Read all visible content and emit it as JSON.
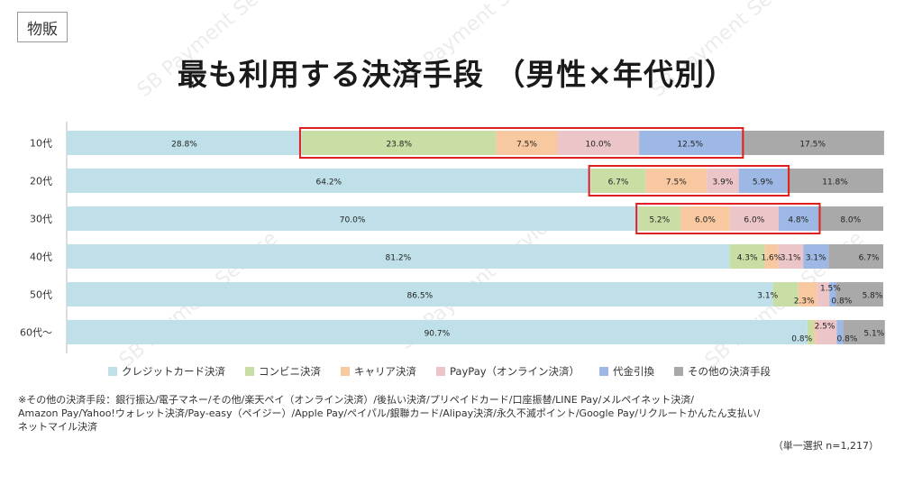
{
  "tag": "物販",
  "title": "最も利用する決済手段 （男性×年代別）",
  "watermark": "SB Payment Service",
  "chart_data": {
    "type": "bar",
    "orientation": "horizontal",
    "stacked": true,
    "percent_stacked": true,
    "categories": [
      "10代",
      "20代",
      "30代",
      "40代",
      "50代",
      "60代～"
    ],
    "series": [
      {
        "name": "クレジットカード決済",
        "color": "#bfe0e8",
        "values": [
          28.8,
          64.2,
          70.0,
          81.2,
          86.5,
          90.7
        ]
      },
      {
        "name": "コンビニ決済",
        "color": "#c9dea5",
        "values": [
          23.8,
          6.7,
          5.2,
          4.3,
          3.1,
          0.8
        ]
      },
      {
        "name": "キャリア決済",
        "color": "#f8c8a0",
        "values": [
          7.5,
          7.5,
          6.0,
          1.6,
          2.3,
          0.3
        ]
      },
      {
        "name": "PayPay（オンライン決済）",
        "color": "#ecc5c8",
        "values": [
          10.0,
          3.9,
          6.0,
          3.1,
          1.5,
          2.5
        ]
      },
      {
        "name": "代金引換",
        "color": "#9db8e4",
        "values": [
          12.5,
          5.9,
          4.8,
          3.1,
          0.8,
          0.8
        ]
      },
      {
        "name": "その他の決済手段",
        "color": "#a9a9a9",
        "values": [
          17.5,
          11.8,
          8.0,
          6.7,
          5.8,
          5.1
        ]
      }
    ],
    "data_labels": [
      [
        "28.8%",
        "23.8%",
        "7.5%",
        "10.0%",
        "12.5%",
        "17.5%"
      ],
      [
        "64.2%",
        "6.7%",
        "7.5%",
        "3.9%",
        "5.9%",
        "11.8%"
      ],
      [
        "70.0%",
        "5.2%",
        "6.0%",
        "6.0%",
        "4.8%",
        "8.0%"
      ],
      [
        "81.2%",
        "4.3%",
        "1.6%",
        "3.1%",
        "3.1%",
        "6.7%"
      ],
      [
        "86.5%",
        "3.1%",
        "2.3%",
        "1.5%",
        "0.8%",
        "5.8%"
      ],
      [
        "90.7%",
        "0.8%",
        "",
        "2.5%",
        "0.8%",
        "5.1%"
      ]
    ],
    "highlight_boxes": [
      {
        "category": "10代",
        "from_series": 1,
        "to_series": 4,
        "color": "#e02020"
      },
      {
        "category": "20代",
        "from_series": 1,
        "to_series": 4,
        "color": "#e02020"
      },
      {
        "category": "30代",
        "from_series": 1,
        "to_series": 4,
        "color": "#e02020"
      }
    ],
    "xlim": [
      0,
      100
    ],
    "legend_position": "bottom",
    "grid": false
  },
  "legend": [
    {
      "label": "クレジットカード決済",
      "color": "#bfe0e8"
    },
    {
      "label": "コンビニ決済",
      "color": "#c9dea5"
    },
    {
      "label": "キャリア決済",
      "color": "#f8c8a0"
    },
    {
      "label": "PayPay（オンライン決済）",
      "color": "#ecc5c8"
    },
    {
      "label": "代金引換",
      "color": "#9db8e4"
    },
    {
      "label": "その他の決済手段",
      "color": "#a9a9a9"
    }
  ],
  "footnote": {
    "line1": "※その他の決済手段：銀行振込/電子マネー/その他/楽天ペイ（オンライン決済）/後払い決済/プリペイドカード/口座振替/LINE Pay/メルペイネット決済/",
    "line2": "Amazon Pay/Yahoo!ウォレット決済/Pay-easy（ペイジー）/Apple Pay/ペイパル/銀聯カード/Alipay決済/永久不滅ポイント/Google Pay/リクルートかんたん支払い/",
    "line3": "ネットマイル決済"
  },
  "sample_note": "（単一選択 n=1,217）"
}
